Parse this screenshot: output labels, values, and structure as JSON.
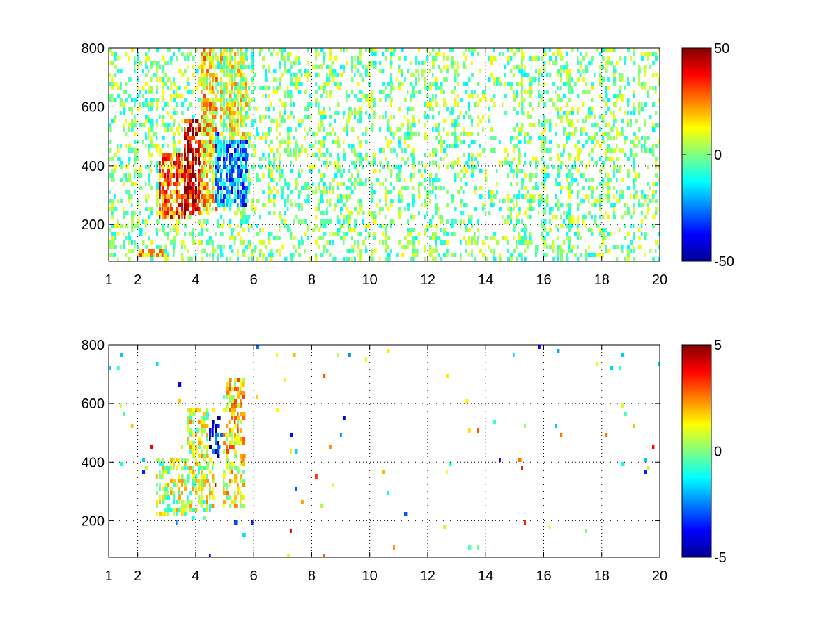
{
  "chart_data": [
    {
      "type": "heatmap",
      "title": "",
      "xlabel": "",
      "ylabel": "",
      "xlim": [
        1,
        20
      ],
      "ylim": [
        75,
        800
      ],
      "x_ticks": [
        1,
        2,
        4,
        6,
        8,
        10,
        12,
        14,
        16,
        18,
        20
      ],
      "x_tick_labels": [
        "1",
        "2",
        "4",
        "6",
        "8",
        "10",
        "12",
        "14",
        "16",
        "18",
        "20"
      ],
      "y_ticks": [
        200,
        400,
        600,
        800
      ],
      "y_tick_labels": [
        "200",
        "400",
        "600",
        "800"
      ],
      "grid": true,
      "colormap": "jet",
      "colorbar": {
        "range": [
          -50,
          50
        ],
        "ticks": [
          50,
          0,
          -50
        ],
        "tick_labels": [
          "50",
          "0",
          "-50"
        ]
      },
      "dense_regions": [
        {
          "x": [
            2.7,
            3.6
          ],
          "y": [
            220,
            450
          ],
          "value": 28
        },
        {
          "x": [
            3.5,
            4.1
          ],
          "y": [
            240,
            560
          ],
          "value": 42
        },
        {
          "x": [
            4.1,
            4.7
          ],
          "y": [
            250,
            800
          ],
          "value": 15
        },
        {
          "x": [
            4.6,
            5.8
          ],
          "y": [
            260,
            520
          ],
          "value": -22
        },
        {
          "x": [
            4.8,
            5.8
          ],
          "y": [
            500,
            800
          ],
          "value": 8
        },
        {
          "x": [
            2.0,
            2.9
          ],
          "y": [
            90,
            120
          ],
          "value": 18
        }
      ],
      "background_value_range": [
        -14,
        14
      ]
    },
    {
      "type": "heatmap",
      "title": "",
      "xlabel": "",
      "ylabel": "",
      "xlim": [
        1,
        20
      ],
      "ylim": [
        75,
        800
      ],
      "x_ticks": [
        1,
        2,
        4,
        6,
        8,
        10,
        12,
        14,
        16,
        18,
        20
      ],
      "x_tick_labels": [
        "1",
        "2",
        "4",
        "6",
        "8",
        "10",
        "12",
        "14",
        "16",
        "18",
        "20"
      ],
      "y_ticks": [
        200,
        400,
        600,
        800
      ],
      "y_tick_labels": [
        "200",
        "400",
        "600",
        "800"
      ],
      "grid": true,
      "colormap": "jet",
      "colorbar": {
        "range": [
          -5,
          5
        ],
        "ticks": [
          5,
          0,
          -5
        ],
        "tick_labels": [
          "5",
          "0",
          "-5"
        ]
      },
      "dense_regions": [
        {
          "x": [
            2.6,
            3.8
          ],
          "y": [
            220,
            420
          ],
          "value": 0.5
        },
        {
          "x": [
            3.6,
            4.6
          ],
          "y": [
            240,
            600
          ],
          "value": 0.8
        },
        {
          "x": [
            4.4,
            5.0
          ],
          "y": [
            420,
            560
          ],
          "value": -4
        },
        {
          "x": [
            4.9,
            5.7
          ],
          "y": [
            250,
            700
          ],
          "value": 1.5
        }
      ],
      "background_value_range": [
        -4,
        4
      ]
    }
  ]
}
